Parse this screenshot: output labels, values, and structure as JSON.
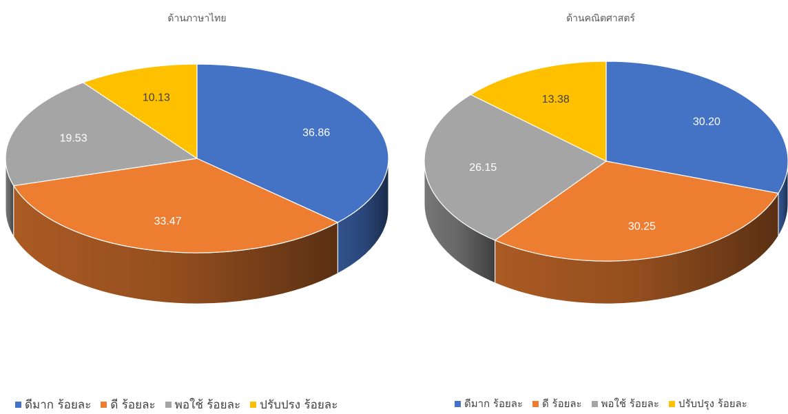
{
  "chart_data": [
    {
      "type": "pie",
      "title": "ด้านภาษาไทย",
      "categories": [
        "ดีมาก ร้อยละ",
        "ดี ร้อยละ",
        "พอใช้ ร้อยละ",
        "ปรับปรง ร้อยละ"
      ],
      "values": [
        36.86,
        33.47,
        19.53,
        10.13
      ],
      "value_labels": [
        "36.86",
        "33.47",
        "19.53",
        "10.13"
      ],
      "colors": [
        "#4472C4",
        "#ED7D31",
        "#A5A5A5",
        "#FFC000"
      ],
      "legend_position": "bottom"
    },
    {
      "type": "pie",
      "title": "ด้านคณิตศาสตร์",
      "categories": [
        "ดีมาก ร้อยละ",
        "ดี ร้อยละ",
        "พอใช้ ร้อยละ",
        "ปรับปรุง ร้อยละ"
      ],
      "values": [
        30.2,
        30.25,
        26.15,
        13.38
      ],
      "value_labels": [
        "30.20",
        "30.25",
        "26.15",
        "13.38"
      ],
      "colors": [
        "#4472C4",
        "#ED7D31",
        "#A5A5A5",
        "#FFC000"
      ],
      "legend_position": "bottom"
    }
  ]
}
